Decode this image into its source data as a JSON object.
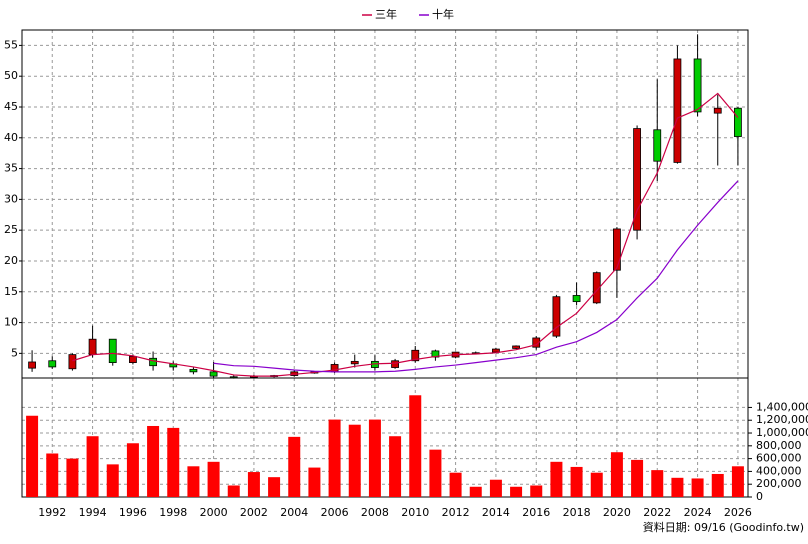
{
  "chart_data": [
    {
      "type": "candlestick",
      "legend": "top",
      "grid": true,
      "up_color": "#cc0000",
      "down_color": "#00cc00",
      "x": [
        1991,
        1992,
        1993,
        1994,
        1995,
        1996,
        1997,
        1998,
        1999,
        2000,
        2001,
        2002,
        2003,
        2004,
        2005,
        2006,
        2007,
        2008,
        2009,
        2010,
        2011,
        2012,
        2013,
        2014,
        2015,
        2016,
        2017,
        2018,
        2019,
        2020,
        2021,
        2022,
        2023,
        2024,
        2025,
        2026
      ],
      "open": [
        2.6,
        3.8,
        2.5,
        4.8,
        7.3,
        3.5,
        4.2,
        3.3,
        2.4,
        2.0,
        1.2,
        1.1,
        1.3,
        1.4,
        2.0,
        2.0,
        3.3,
        3.7,
        2.7,
        3.8,
        5.4,
        4.4,
        5.1,
        5.2,
        5.8,
        6.0,
        7.8,
        14.4,
        13.2,
        18.5,
        25.0,
        41.3,
        36.0,
        52.8,
        44.0,
        44.8
      ],
      "high": [
        5.5,
        4.5,
        5.0,
        9.5,
        7.3,
        4.8,
        5.3,
        3.7,
        2.7,
        3.6,
        1.4,
        1.5,
        1.5,
        2.3,
        2.1,
        3.5,
        4.8,
        4.7,
        4.1,
        6.2,
        5.6,
        5.3,
        5.3,
        5.9,
        6.3,
        7.8,
        14.5,
        16.5,
        18.3,
        25.5,
        42.0,
        49.5,
        55.0,
        56.8,
        47.0,
        45.0
      ],
      "low": [
        2.0,
        2.5,
        2.2,
        4.3,
        3.0,
        3.2,
        2.2,
        2.2,
        1.6,
        1.0,
        0.9,
        1.0,
        1.1,
        1.2,
        1.7,
        1.8,
        2.7,
        2.2,
        2.5,
        3.5,
        3.8,
        4.2,
        4.9,
        5.1,
        5.7,
        5.6,
        7.5,
        12.8,
        13.0,
        14.0,
        23.5,
        33.0,
        35.8,
        43.5,
        35.5,
        35.5
      ],
      "close": [
        3.6,
        2.8,
        4.8,
        7.3,
        3.5,
        4.5,
        3.0,
        2.8,
        2.0,
        1.3,
        1.1,
        1.3,
        1.4,
        2.0,
        1.8,
        3.2,
        3.7,
        2.7,
        3.8,
        5.5,
        4.4,
        5.2,
        5.1,
        5.7,
        6.2,
        7.5,
        14.2,
        13.4,
        18.1,
        25.2,
        41.5,
        36.2,
        52.8,
        44.2,
        44.8,
        40.2
      ],
      "series": [
        {
          "name": "三年",
          "color": "#cc0044",
          "values": [
            null,
            null,
            3.8,
            4.8,
            5.0,
            4.6,
            3.8,
            3.3,
            2.8,
            2.2,
            1.5,
            1.3,
            1.3,
            1.6,
            1.9,
            2.3,
            2.9,
            3.3,
            3.4,
            4.0,
            4.5,
            4.8,
            4.9,
            5.1,
            5.6,
            6.4,
            9.2,
            11.5,
            15.2,
            18.9,
            28.2,
            34.3,
            43.2,
            44.6,
            47.2,
            43.3
          ]
        },
        {
          "name": "十年",
          "color": "#8800cc",
          "values": [
            null,
            null,
            null,
            null,
            null,
            null,
            null,
            null,
            null,
            3.4,
            3.0,
            2.9,
            2.6,
            2.3,
            2.1,
            2.0,
            2.0,
            2.0,
            2.1,
            2.4,
            2.8,
            3.1,
            3.5,
            3.9,
            4.3,
            4.8,
            6.0,
            6.9,
            8.4,
            10.5,
            14.0,
            17.2,
            21.8,
            25.8,
            29.5,
            33.0
          ]
        }
      ],
      "xlim": [
        1990.5,
        2026.5
      ],
      "xticks": [
        1992,
        1994,
        1996,
        1998,
        2000,
        2002,
        2004,
        2006,
        2008,
        2010,
        2012,
        2014,
        2016,
        2018,
        2020,
        2022,
        2024,
        2026
      ],
      "ylim": [
        1,
        57.5
      ],
      "yticks": [
        5,
        10,
        15,
        20,
        25,
        30,
        35,
        40,
        45,
        50,
        55
      ]
    },
    {
      "type": "bar",
      "grid": true,
      "color": "#ff0000",
      "x": [
        1991,
        1992,
        1993,
        1994,
        1995,
        1996,
        1997,
        1998,
        1999,
        2000,
        2001,
        2002,
        2003,
        2004,
        2005,
        2006,
        2007,
        2008,
        2009,
        2010,
        2011,
        2012,
        2013,
        2014,
        2015,
        2016,
        2017,
        2018,
        2019,
        2020,
        2021,
        2022,
        2023,
        2024,
        2025,
        2026
      ],
      "values": [
        1270000,
        680000,
        600000,
        950000,
        510000,
        840000,
        1110000,
        1080000,
        480000,
        550000,
        180000,
        390000,
        310000,
        940000,
        460000,
        1210000,
        1130000,
        1210000,
        950000,
        1590000,
        740000,
        380000,
        160000,
        270000,
        160000,
        180000,
        550000,
        470000,
        380000,
        700000,
        580000,
        420000,
        300000,
        290000,
        360000,
        480000
      ],
      "xlim": [
        1990.5,
        2026.5
      ],
      "xticks": [
        1992,
        1994,
        1996,
        1998,
        2000,
        2002,
        2004,
        2006,
        2008,
        2010,
        2012,
        2014,
        2016,
        2018,
        2020,
        2022,
        2024,
        2026
      ],
      "ylim": [
        0,
        1860000
      ],
      "yticks": [
        0,
        {
          "value": 200000,
          "label": "200,000"
        },
        {
          "value": 400000,
          "label": "400,000"
        },
        {
          "value": 600000,
          "label": "600,000"
        },
        {
          "value": 800000,
          "label": "800,000"
        },
        {
          "value": 1000000,
          "label": "1,000,000"
        },
        {
          "value": 1200000,
          "label": "1,200,000"
        },
        {
          "value": 1400000,
          "label": "1,400,000"
        }
      ],
      "footnote": "資料日期: 09/16 (Goodinfo.tw)"
    }
  ]
}
